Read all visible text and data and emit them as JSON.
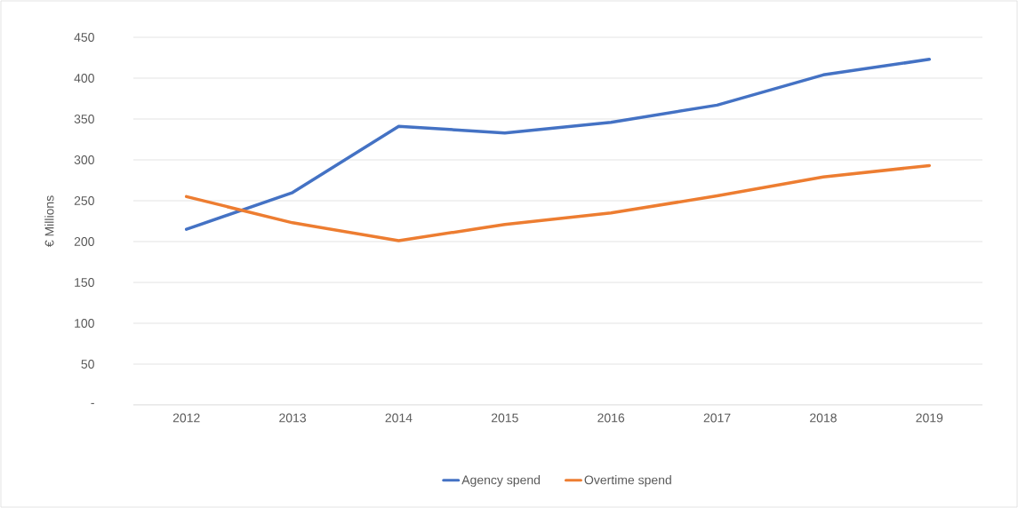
{
  "chart_data": {
    "type": "line",
    "ylabel": "€ Millions",
    "categories": [
      "2012",
      "2013",
      "2014",
      "2015",
      "2016",
      "2017",
      "2018",
      "2019"
    ],
    "series": [
      {
        "name": "Agency spend",
        "color": "#4472c4",
        "values": [
          215,
          260,
          341,
          333,
          346,
          367,
          404,
          423
        ]
      },
      {
        "name": "Overtime spend",
        "color": "#ed7d31",
        "values": [
          255,
          223,
          201,
          221,
          235,
          256,
          279,
          293
        ]
      }
    ],
    "ylim": [
      0,
      450
    ],
    "yticks": [
      {
        "value": 0,
        "label": "-"
      },
      50,
      100,
      150,
      200,
      250,
      300,
      350,
      400,
      450
    ],
    "grid": "y",
    "legend": "bottom"
  }
}
